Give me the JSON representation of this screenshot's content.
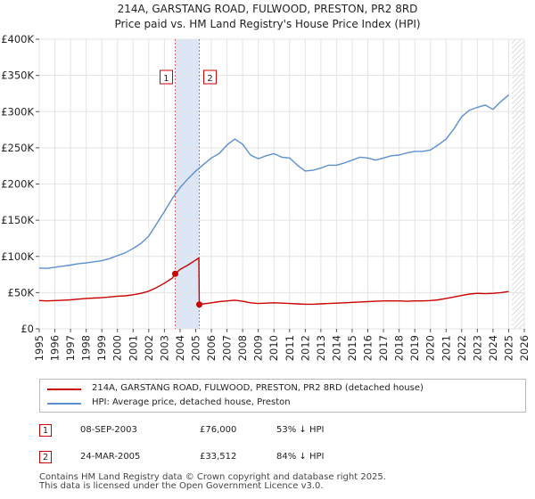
{
  "chart_data": {
    "type": "line",
    "title": "214A, GARSTANG ROAD, FULWOOD, PRESTON, PR2 8RD",
    "subtitle": "Price paid vs. HM Land Registry's House Price Index (HPI)",
    "ylim": [
      0,
      400000
    ],
    "xlim": [
      1995,
      2026
    ],
    "y_ticks": [
      0,
      50000,
      100000,
      150000,
      200000,
      250000,
      300000,
      350000,
      400000
    ],
    "y_tick_labels": [
      "£0",
      "£50K",
      "£100K",
      "£150K",
      "£200K",
      "£250K",
      "£300K",
      "£350K",
      "£400K"
    ],
    "x_ticks": [
      1995,
      1996,
      1997,
      1998,
      1999,
      2000,
      2001,
      2002,
      2003,
      2004,
      2005,
      2006,
      2007,
      2008,
      2009,
      2010,
      2011,
      2012,
      2013,
      2014,
      2015,
      2016,
      2017,
      2018,
      2019,
      2020,
      2021,
      2022,
      2023,
      2024,
      2025,
      2026
    ],
    "x_tick_labels": [
      "1995",
      "1996",
      "1997",
      "1998",
      "1999",
      "2000",
      "2001",
      "2002",
      "2003",
      "2004",
      "2005",
      "2006",
      "2007",
      "2008",
      "2009",
      "2010",
      "2011",
      "2012",
      "2013",
      "2014",
      "2015",
      "2016",
      "2017",
      "2018",
      "2019",
      "2020",
      "2021",
      "2022",
      "2023",
      "2024",
      "2025",
      "2026"
    ],
    "shaded_span": [
      2003.69,
      2005.23
    ],
    "future_hatch_from": 2025.2,
    "series": [
      {
        "name": "214A, GARSTANG ROAD, FULWOOD, PRESTON, PR2 8RD (detached house)",
        "color": "#cc0000",
        "x": [
          1995.0,
          1995.5,
          1996.0,
          1996.5,
          1997.0,
          1997.5,
          1998.0,
          1998.5,
          1999.0,
          1999.5,
          2000.0,
          2000.5,
          2001.0,
          2001.5,
          2002.0,
          2002.5,
          2003.0,
          2003.5,
          2003.69,
          2004.0,
          2004.5,
          2005.0,
          2005.2,
          2005.23,
          2005.5,
          2006.0,
          2006.5,
          2007.0,
          2007.5,
          2008.0,
          2008.5,
          2009.0,
          2009.5,
          2010.0,
          2010.5,
          2011.0,
          2011.5,
          2012.0,
          2012.5,
          2013.0,
          2013.5,
          2014.0,
          2014.5,
          2015.0,
          2015.5,
          2016.0,
          2016.5,
          2017.0,
          2017.5,
          2018.0,
          2018.5,
          2019.0,
          2019.5,
          2020.0,
          2020.5,
          2021.0,
          2021.5,
          2022.0,
          2022.5,
          2023.0,
          2023.5,
          2024.0,
          2024.5,
          2025.0
        ],
        "values": [
          39000,
          38500,
          39000,
          39500,
          40000,
          41000,
          42000,
          42500,
          43000,
          44000,
          45000,
          45500,
          47000,
          49000,
          52000,
          57000,
          63000,
          70000,
          76000,
          82000,
          88000,
          95000,
          98000,
          33512,
          34500,
          36000,
          37500,
          38500,
          39500,
          38000,
          36000,
          35000,
          35500,
          36000,
          35500,
          35000,
          34500,
          34000,
          34000,
          34500,
          35000,
          35500,
          36000,
          36500,
          37000,
          37500,
          38000,
          38500,
          38500,
          38500,
          38000,
          38500,
          38500,
          39000,
          40000,
          42000,
          44000,
          46000,
          48000,
          49000,
          48500,
          49000,
          50000,
          51500
        ]
      },
      {
        "name": "HPI: Average price, detached house, Preston",
        "color": "#5b8fd0",
        "x": [
          1995.0,
          1995.5,
          1996.0,
          1996.5,
          1997.0,
          1997.5,
          1998.0,
          1998.5,
          1999.0,
          1999.5,
          2000.0,
          2000.5,
          2001.0,
          2001.5,
          2002.0,
          2002.5,
          2003.0,
          2003.5,
          2004.0,
          2004.5,
          2005.0,
          2005.5,
          2006.0,
          2006.5,
          2007.0,
          2007.5,
          2008.0,
          2008.5,
          2009.0,
          2009.5,
          2010.0,
          2010.5,
          2011.0,
          2011.5,
          2012.0,
          2012.5,
          2013.0,
          2013.5,
          2014.0,
          2014.5,
          2015.0,
          2015.5,
          2016.0,
          2016.5,
          2017.0,
          2017.5,
          2018.0,
          2018.5,
          2019.0,
          2019.5,
          2020.0,
          2020.5,
          2021.0,
          2021.5,
          2022.0,
          2022.5,
          2023.0,
          2023.5,
          2024.0,
          2024.5,
          2025.0
        ],
        "values": [
          84000,
          83500,
          85000,
          86500,
          88000,
          90000,
          91000,
          92500,
          94000,
          97000,
          101000,
          105000,
          111000,
          118000,
          128000,
          145000,
          162000,
          180000,
          195000,
          207000,
          218000,
          227000,
          236000,
          242000,
          254000,
          262000,
          255000,
          240000,
          235000,
          239000,
          242000,
          237000,
          236000,
          226000,
          218000,
          219000,
          222000,
          226000,
          226000,
          229000,
          233000,
          237000,
          236000,
          233000,
          236000,
          239000,
          240000,
          243000,
          245000,
          245000,
          247000,
          254000,
          262000,
          276000,
          293000,
          302000,
          306000,
          309000,
          303000,
          314000,
          323000
        ]
      }
    ],
    "transactions": [
      {
        "id": "1",
        "date": "08-SEP-2003",
        "year": 2003.69,
        "price": 76000,
        "price_label": "£76,000",
        "hpi_label": "53% ↓ HPI"
      },
      {
        "id": "2",
        "date": "24-MAR-2005",
        "year": 2005.23,
        "price": 33512,
        "price_label": "£33,512",
        "hpi_label": "84% ↓ HPI"
      }
    ]
  },
  "legend": {
    "property_label": "214A, GARSTANG ROAD, FULWOOD, PRESTON, PR2 8RD (detached house)",
    "hpi_label": "HPI: Average price, detached house, Preston",
    "property_color": "#cc0000",
    "hpi_color": "#5b8fd0"
  },
  "footer": {
    "line1": "Contains HM Land Registry data © Crown copyright and database right 2025.",
    "line2": "This data is licensed under the Open Government Licence v3.0."
  }
}
